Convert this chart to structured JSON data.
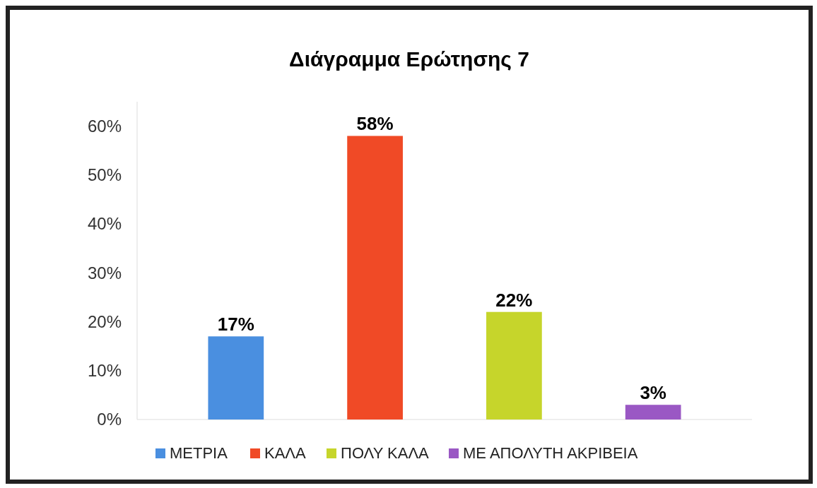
{
  "chart_data": {
    "type": "bar",
    "title": "Διάγραμμα Ερώτησης 7",
    "categories": [
      null
    ],
    "series": [
      {
        "name": "ΜΕΤΡΙΑ",
        "color": "#4a8fe0",
        "values": [
          17
        ],
        "value_labels": [
          "17%"
        ]
      },
      {
        "name": "ΚΑΛΑ",
        "color": "#f04a26",
        "values": [
          58
        ],
        "value_labels": [
          "58%"
        ]
      },
      {
        "name": "ΠΟΛΥ ΚΑΛΑ",
        "color": "#c6d52b",
        "values": [
          22
        ],
        "value_labels": [
          "22%"
        ]
      },
      {
        "name": "ΜΕ ΑΠΟΛΥΤΗ ΑΚΡΙΒΕΙΑ",
        "color": "#9a58c4",
        "values": [
          3
        ],
        "value_labels": [
          "3%"
        ]
      }
    ],
    "ylim": [
      0,
      65
    ],
    "yticks": [
      {
        "value": 0,
        "label": "0%"
      },
      {
        "value": 10,
        "label": "10%"
      },
      {
        "value": 20,
        "label": "20%"
      },
      {
        "value": 30,
        "label": "30%"
      },
      {
        "value": 40,
        "label": "40%"
      },
      {
        "value": 50,
        "label": "50%"
      },
      {
        "value": 60,
        "label": "60%"
      }
    ],
    "tick_labels": "y",
    "legend": "bottom"
  }
}
